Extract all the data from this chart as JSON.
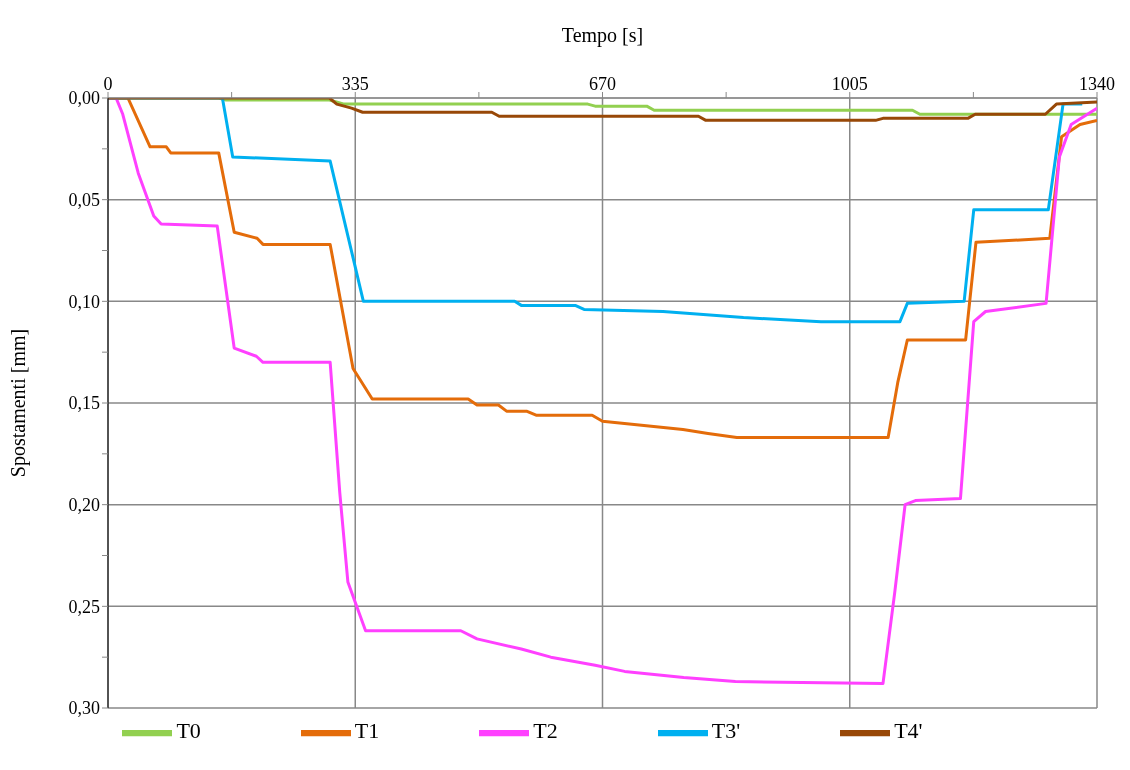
{
  "chart_data": {
    "type": "line",
    "xlabel": "Tempo [s]",
    "ylabel": "Spostamenti [mm]",
    "xlim": [
      0,
      1340
    ],
    "xticks": [
      0,
      {
        "value": 167.5,
        "label": null
      },
      335,
      {
        "value": 502.5,
        "label": null
      },
      670,
      {
        "value": 837.5,
        "label": null
      },
      1005,
      {
        "value": 1172.5,
        "label": null
      },
      1340
    ],
    "ylim": [
      0.3,
      0
    ],
    "yticks": [
      {
        "value": 0,
        "label": "0,00"
      },
      {
        "value": 0.025,
        "label": null
      },
      {
        "value": 0.05,
        "label": "0,05"
      },
      {
        "value": 0.075,
        "label": null
      },
      {
        "value": 0.1,
        "label": "0,10"
      },
      {
        "value": 0.125,
        "label": null
      },
      {
        "value": 0.15,
        "label": "0,15"
      },
      {
        "value": 0.175,
        "label": null
      },
      {
        "value": 0.2,
        "label": "0,20"
      },
      {
        "value": 0.225,
        "label": null
      },
      {
        "value": 0.25,
        "label": "0,25"
      },
      {
        "value": 0.275,
        "label": null
      },
      {
        "value": 0.3,
        "label": "0,30"
      }
    ],
    "grid": true,
    "legend": "bottom",
    "marker": "none",
    "line_style": "solid",
    "series": [
      {
        "name": "T0",
        "color": "#92d050",
        "x": [
          0,
          150,
          160,
          300,
          320,
          650,
          660,
          730,
          740,
          1090,
          1100,
          1340
        ],
        "values": [
          0,
          0,
          0.001,
          0.001,
          0.003,
          0.003,
          0.004,
          0.004,
          0.006,
          0.006,
          0.008,
          0.008
        ]
      },
      {
        "name": "T1",
        "color": "#e46c0a",
        "x": [
          0,
          27,
          57,
          79,
          85,
          150,
          171,
          202,
          210,
          301,
          332,
          358,
          488,
          500,
          529,
          540,
          567,
          580,
          656,
          670,
          779,
          813,
          852,
          1057,
          1070,
          1083,
          1162,
          1176,
          1276,
          1292,
          1317,
          1340
        ],
        "values": [
          0,
          0,
          0.024,
          0.024,
          0.027,
          0.027,
          0.066,
          0.069,
          0.072,
          0.072,
          0.133,
          0.148,
          0.148,
          0.151,
          0.151,
          0.154,
          0.154,
          0.156,
          0.156,
          0.159,
          0.163,
          0.165,
          0.167,
          0.167,
          0.14,
          0.119,
          0.119,
          0.071,
          0.069,
          0.019,
          0.013,
          0.011
        ]
      },
      {
        "name": "T2",
        "color": "#ff40ff",
        "x": [
          0,
          11,
          20,
          41,
          62,
          72,
          148,
          171,
          201,
          210,
          301,
          314,
          325,
          349,
          478,
          500,
          560,
          600,
          660,
          700,
          780,
          850,
          1050,
          1066,
          1080,
          1094,
          1155,
          1173,
          1189,
          1271,
          1289,
          1305,
          1340
        ],
        "values": [
          0,
          0,
          0.008,
          0.037,
          0.058,
          0.062,
          0.063,
          0.123,
          0.127,
          0.13,
          0.13,
          0.194,
          0.238,
          0.262,
          0.262,
          0.266,
          0.271,
          0.275,
          0.279,
          0.282,
          0.285,
          0.287,
          0.288,
          0.243,
          0.2,
          0.198,
          0.197,
          0.11,
          0.105,
          0.101,
          0.029,
          0.013,
          0.005
        ]
      },
      {
        "name": "T3'",
        "color": "#00b0f0",
        "x": [
          0,
          155,
          169,
          301,
          346,
          551,
          560,
          633,
          645,
          752,
          861,
          966,
          1073,
          1083,
          1160,
          1173,
          1274,
          1294,
          1320
        ],
        "values": [
          0,
          0,
          0.029,
          0.031,
          0.1,
          0.1,
          0.102,
          0.102,
          0.104,
          0.105,
          0.108,
          0.11,
          0.11,
          0.101,
          0.1,
          0.055,
          0.055,
          0.003,
          0.003
        ]
      },
      {
        "name": "T4'",
        "color": "#984807",
        "x": [
          0,
          300,
          310,
          330,
          345,
          520,
          530,
          800,
          810,
          1040,
          1050,
          1165,
          1175,
          1270,
          1285,
          1340
        ],
        "values": [
          0,
          0,
          0.003,
          0.005,
          0.007,
          0.007,
          0.009,
          0.009,
          0.011,
          0.011,
          0.01,
          0.01,
          0.008,
          0.008,
          0.003,
          0.002
        ]
      }
    ]
  }
}
